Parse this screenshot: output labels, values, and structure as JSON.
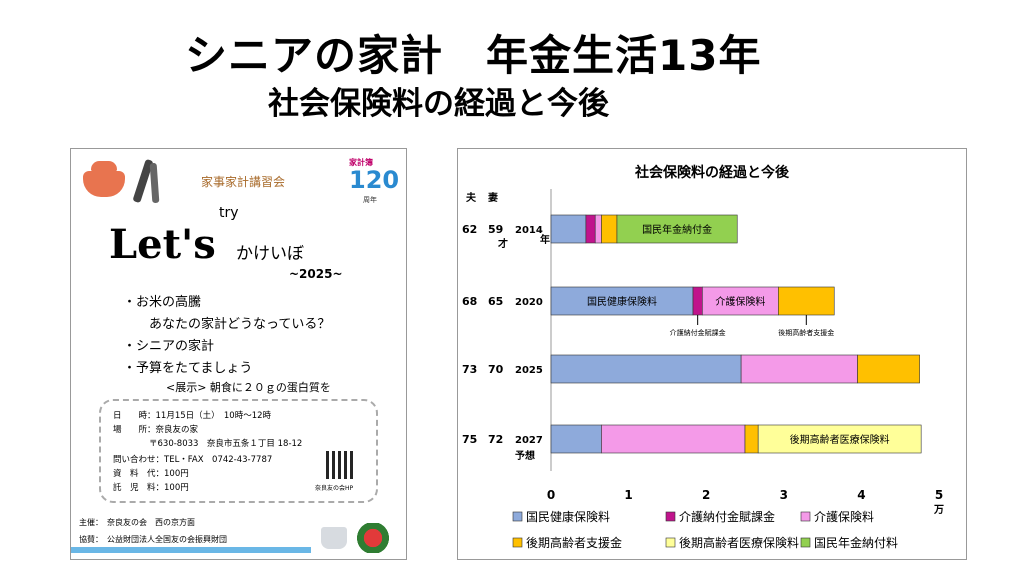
{
  "title": "シニアの家計　年金生活13年",
  "subtitle": "社会保険料の経過と今後",
  "flyer": {
    "seminar": "家事家計講習会",
    "badge_top": "家計簿",
    "badge_number": "120",
    "badge_bottom": "周年",
    "lets": "Let's",
    "try": "try",
    "kakeibo": "かけいぼ",
    "year": "~2025~",
    "bullets": [
      "・お米の高騰",
      "あなたの家計どうなっている？",
      "・シニアの家計",
      "・予算をたてましょう"
    ],
    "exhibit": "<展示> 朝食に２０ｇの蛋白質を",
    "info": {
      "date": "日　　時：11月15日（土）　10時～12時",
      "place": "場　　所：奈良友の家",
      "address": "〒630-8033　奈良市五条１丁目 18-12",
      "contact": "問い合わせ：TEL・FAX　0742-43-7787",
      "material": "資　料　代：100円",
      "tuition": "託　児　料：100円",
      "qr_note": "奈良友の会HP"
    },
    "host": "主催：　奈良友の会　西の京方面",
    "assist": "協賛：　公益財団法人全国友の会振興財団"
  },
  "chart_data": {
    "type": "bar",
    "orientation": "horizontal",
    "stacked": true,
    "title": "社会保険料の経過と今後",
    "header_husband": "夫",
    "header_wife": "妻",
    "rows": [
      {
        "husband": "62",
        "wife": "59",
        "age_unit": "才",
        "year": "2014",
        "year_suffix": "年"
      },
      {
        "husband": "68",
        "wife": "65",
        "year": "2020"
      },
      {
        "husband": "73",
        "wife": "70",
        "year": "2025"
      },
      {
        "husband": "75",
        "wife": "72",
        "year": "2027",
        "year_note": "予想"
      }
    ],
    "series": [
      {
        "name": "国民健康保険料",
        "color": "#8eaadb",
        "values": [
          0.45,
          1.83,
          2.45,
          0.65
        ]
      },
      {
        "name": "介護納付金賦課金",
        "color": "#c0148c",
        "values": [
          0.12,
          0.12,
          0,
          0
        ]
      },
      {
        "name": "介護保険料",
        "color": "#f49ae8",
        "values": [
          0.08,
          0.98,
          1.5,
          1.85
        ]
      },
      {
        "name": "後期高齢者支援金",
        "color": "#ffc000",
        "values": [
          0.2,
          0.72,
          0.8,
          0.17
        ]
      },
      {
        "name": "後期高齢者医療保険料",
        "color": "#ffff99",
        "values": [
          0,
          0,
          0,
          2.1
        ]
      },
      {
        "name": "国民年金納付料",
        "color": "#92d050",
        "values": [
          1.55,
          0,
          0,
          0
        ]
      }
    ],
    "bar_labels": [
      {
        "row": 0,
        "series": 5,
        "text": "国民年金納付金"
      },
      {
        "row": 1,
        "series": 0,
        "text": "国民健康保険料"
      },
      {
        "row": 1,
        "series": 2,
        "text": "介護保険料"
      },
      {
        "row": 3,
        "series": 4,
        "text": "後期高齢者医療保険料"
      }
    ],
    "annotations": [
      {
        "row": 1,
        "series": 1,
        "text": "介護納付金賦課金"
      },
      {
        "row": 1,
        "series": 3,
        "text": "後期高齢者支援金"
      }
    ],
    "xlim": [
      0,
      5
    ],
    "xticks": [
      "0",
      "1",
      "2",
      "3",
      "4",
      "5"
    ],
    "x_unit": "万",
    "legend_position": "bottom"
  }
}
